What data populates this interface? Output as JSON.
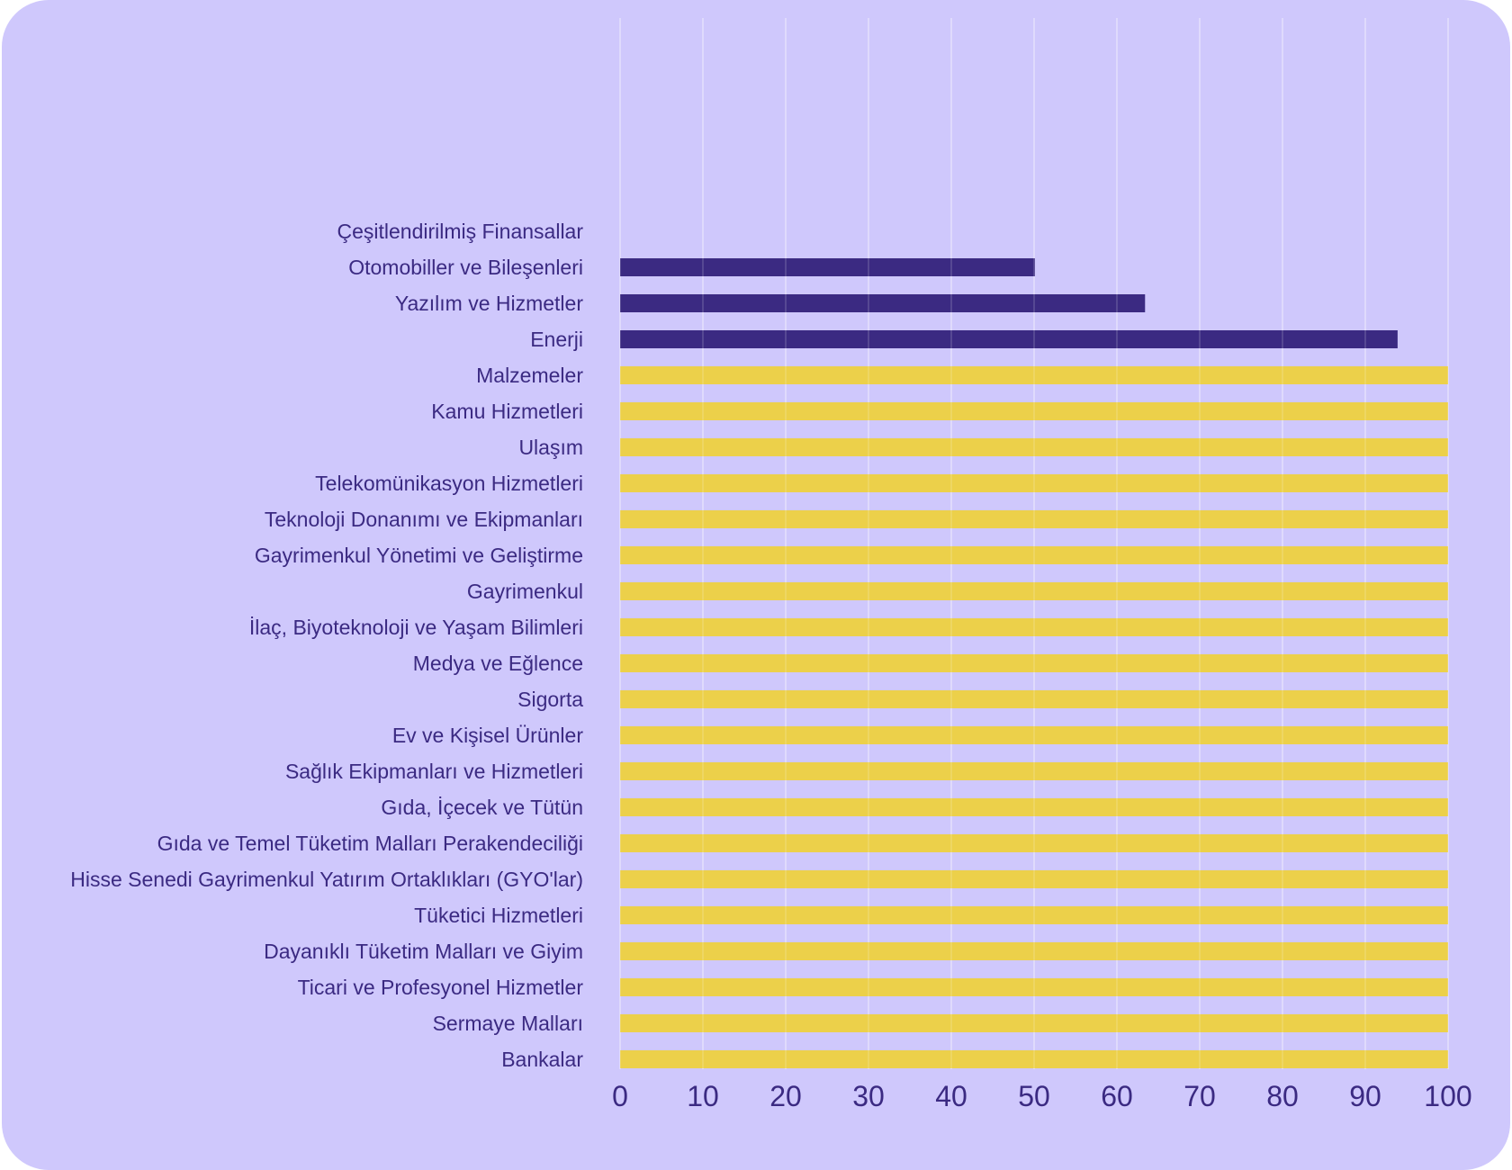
{
  "chart_data": {
    "type": "bar",
    "orientation": "horizontal",
    "categories": [
      "Çeşitlendirilmiş Finansallar",
      "Otomobiller ve Bileşenleri",
      "Yazılım ve Hizmetler",
      "Enerji",
      "Malzemeler",
      "Kamu Hizmetleri",
      "Ulaşım",
      "Telekomünikasyon Hizmetleri",
      "Teknoloji Donanımı ve Ekipmanları",
      "Gayrimenkul Yönetimi ve Geliştirme",
      "Gayrimenkul",
      "İlaç, Biyoteknoloji ve Yaşam Bilimleri",
      "Medya ve Eğlence",
      "Sigorta",
      "Ev ve Kişisel Ürünler",
      "Sağlık Ekipmanları ve Hizmetleri",
      "Gıda, İçecek ve Tütün",
      "Gıda ve Temel Tüketim Malları Perakendeciliği",
      "Hisse Senedi Gayrimenkul Yatırım Ortaklıkları (GYO'lar)",
      "Tüketici Hizmetleri",
      "Dayanıklı Tüketim Malları ve Giyim",
      "Ticari ve Profesyonel Hizmetler",
      "Sermaye Malları",
      "Bankalar"
    ],
    "values": [
      0,
      50.1,
      63.4,
      93.9,
      100,
      100,
      100,
      100,
      100,
      100,
      100,
      100,
      100,
      100,
      100,
      100,
      100,
      100,
      100,
      100,
      100,
      100,
      100,
      100
    ],
    "bar_colors": [
      "#3b2a82",
      "#3b2a82",
      "#3b2a82",
      "#3b2a82",
      "#ecd04a",
      "#ecd04a",
      "#ecd04a",
      "#ecd04a",
      "#ecd04a",
      "#ecd04a",
      "#ecd04a",
      "#ecd04a",
      "#ecd04a",
      "#ecd04a",
      "#ecd04a",
      "#ecd04a",
      "#ecd04a",
      "#ecd04a",
      "#ecd04a",
      "#ecd04a",
      "#ecd04a",
      "#ecd04a",
      "#ecd04a",
      "#ecd04a"
    ],
    "x_ticks": [
      0,
      10,
      20,
      30,
      40,
      50,
      60,
      70,
      80,
      90,
      100
    ],
    "xlim": [
      0,
      100
    ],
    "title": "",
    "xlabel": "",
    "ylabel": "",
    "grid": "vertical",
    "legend": "none"
  },
  "colors": {
    "background": "#cfc8fc",
    "text": "#3b2a82",
    "gridline": "#e4e0fd"
  }
}
